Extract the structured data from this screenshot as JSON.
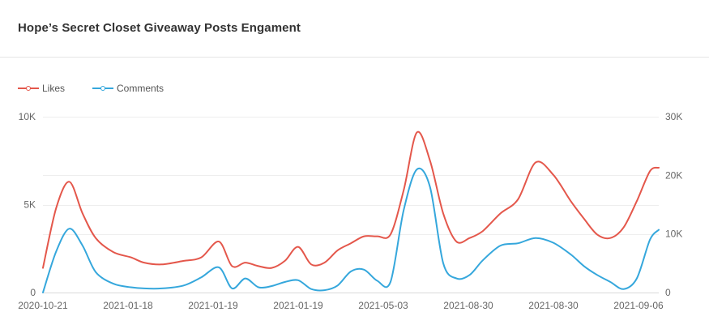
{
  "card": {
    "title": "Hope’s Secret Closet Giveaway Posts Engament"
  },
  "chart_data": {
    "type": "line",
    "title": "Hope’s Secret Closet Giveaway Posts Engament",
    "legend_position": "top-left",
    "x_tick_labels": [
      "2020-10-21",
      "2021-01-18",
      "2021-01-19",
      "2021-01-19",
      "2021-05-03",
      "2021-08-30",
      "2021-08-30",
      "2021-09-06"
    ],
    "y_left": {
      "range": [
        0,
        10000
      ],
      "tick_labels": [
        "0",
        "5K",
        "10K"
      ],
      "tick_values": [
        0,
        5000,
        10000
      ]
    },
    "y_right": {
      "range": [
        0,
        30000
      ],
      "tick_labels": [
        "0",
        "10K",
        "20K",
        "30K"
      ],
      "tick_values": [
        0,
        10000,
        20000,
        30000
      ]
    },
    "grid": true,
    "x_index": [
      0,
      0.15,
      0.3,
      0.45,
      0.6,
      0.8,
      1.0,
      1.15,
      1.35,
      1.6,
      1.8,
      2.0,
      2.15,
      2.3,
      2.45,
      2.6,
      2.75,
      2.9,
      3.05,
      3.2,
      3.35,
      3.5,
      3.65,
      3.8,
      3.95,
      4.1,
      4.25,
      4.4,
      4.55,
      4.7,
      4.85,
      5.0,
      5.2,
      5.4,
      5.6,
      5.8,
      6.0,
      6.15,
      6.3,
      6.45,
      6.6,
      6.75,
      6.9,
      7.0
    ],
    "series": [
      {
        "name": "Likes",
        "color": "#e4574b",
        "axis": "left",
        "values": [
          1400,
          4800,
          6300,
          4500,
          3100,
          2300,
          2000,
          1700,
          1600,
          1800,
          2000,
          2900,
          1500,
          1700,
          1500,
          1400,
          1800,
          2600,
          1600,
          1700,
          2400,
          2800,
          3200,
          3200,
          3300,
          5800,
          9100,
          7500,
          4500,
          2900,
          3100,
          3500,
          4500,
          5300,
          7400,
          6700,
          5200,
          4200,
          3300,
          3100,
          3700,
          5200,
          6900,
          7100
        ]
      },
      {
        "name": "Comments",
        "color": "#35a7dc",
        "axis": "right",
        "values": [
          0,
          7000,
          10900,
          8000,
          3500,
          1500,
          900,
          700,
          700,
          1200,
          2600,
          4300,
          700,
          2400,
          900,
          1100,
          1800,
          2100,
          600,
          400,
          1200,
          3600,
          3900,
          2000,
          1800,
          14000,
          21000,
          18000,
          5000,
          2400,
          3000,
          5500,
          8000,
          8400,
          9300,
          8500,
          6500,
          4500,
          3000,
          1800,
          600,
          2400,
          9000,
          10700
        ]
      }
    ]
  },
  "legend": {
    "items": [
      {
        "label": "Likes",
        "color": "#e4574b"
      },
      {
        "label": "Comments",
        "color": "#35a7dc"
      }
    ]
  },
  "axis_color": "#d9d9d9",
  "grid_color": "#eeeeee"
}
